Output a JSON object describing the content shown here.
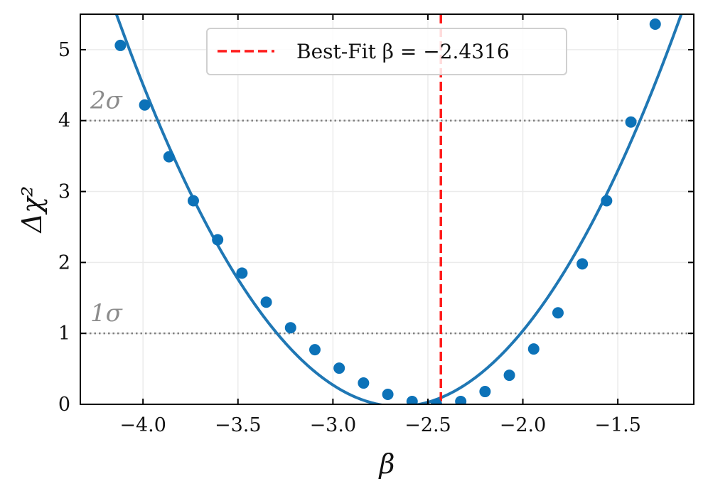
{
  "chart_data": {
    "type": "scatter",
    "xlabel": "β",
    "ylabel": "Δχ²",
    "xlim": [
      -4.33,
      -1.1
    ],
    "ylim": [
      0,
      5.5
    ],
    "xticks": [
      -4.0,
      -3.5,
      -3.0,
      -2.5,
      -2.0,
      -1.5
    ],
    "xtick_labels": [
      "−4.0",
      "−3.5",
      "−3.0",
      "−2.5",
      "−2.0",
      "−1.5"
    ],
    "yticks": [
      0,
      1,
      2,
      3,
      4,
      5
    ],
    "ytick_labels": [
      "0",
      "1",
      "2",
      "3",
      "4",
      "5"
    ],
    "grid": true,
    "legend_placement": "top-center",
    "colors": {
      "series": "#1f77b4",
      "marker": "#0c72b8",
      "best_fit": "#ff1a1a",
      "sigma_lines": "#7f7f7f",
      "sigma_text": "#8c8c8c"
    },
    "series": [
      {
        "x": [
          -4.119,
          -3.991,
          -3.863,
          -3.735,
          -3.607,
          -3.479,
          -3.351,
          -3.223,
          -3.095,
          -2.967,
          -2.839,
          -2.711,
          -2.583,
          -2.455,
          -2.327,
          -2.199,
          -2.071,
          -1.943,
          -1.815,
          -1.687,
          -1.559,
          -1.431,
          -1.303
        ],
        "y": [
          5.06,
          4.22,
          3.49,
          2.87,
          2.32,
          1.85,
          1.44,
          1.08,
          0.77,
          0.51,
          0.3,
          0.14,
          0.04,
          0.0,
          0.04,
          0.18,
          0.41,
          0.78,
          1.29,
          1.98,
          2.87,
          3.98,
          5.36
        ]
      }
    ],
    "fit_curve": {
      "type": "line",
      "x_range": [
        -4.33,
        -1.1
      ]
    },
    "best_fit": {
      "x": -2.4316,
      "label": "Best-Fit β = −2.4316"
    },
    "reference_lines": [
      {
        "y": 1,
        "label": "1σ"
      },
      {
        "y": 4,
        "label": "2σ"
      }
    ]
  }
}
